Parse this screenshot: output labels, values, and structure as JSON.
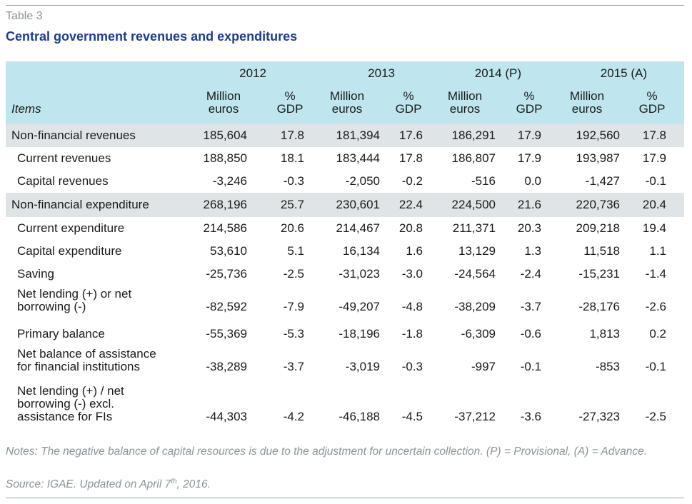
{
  "table_number": "Table 3",
  "title": "Central government revenues and expenditures",
  "header": {
    "years": [
      "2012",
      "2013",
      "2014 (P)",
      "2015 (A)"
    ],
    "unit_million_line1": "Million",
    "unit_million_line2": "euros",
    "unit_gdp_line1": "%",
    "unit_gdp_line2": "GDP",
    "items_label": "Items"
  },
  "rows": [
    {
      "label": [
        "Non-financial revenues"
      ],
      "shaded": true,
      "indent": false,
      "values": [
        "185,604",
        "17.8",
        "181,394",
        "17.6",
        "186,291",
        "17.9",
        "192,560",
        "17.8"
      ]
    },
    {
      "label": [
        "Current revenues"
      ],
      "shaded": false,
      "indent": true,
      "values": [
        "188,850",
        "18.1",
        "183,444",
        "17.8",
        "186,807",
        "17.9",
        "193,987",
        "17.9"
      ]
    },
    {
      "label": [
        "Capital revenues"
      ],
      "shaded": false,
      "indent": true,
      "values": [
        "-3,246",
        "-0.3",
        "-2,050",
        "-0.2",
        "-516",
        "0.0",
        "-1,427",
        "-0.1"
      ]
    },
    {
      "label": [
        "Non-financial expenditure"
      ],
      "shaded": true,
      "indent": false,
      "values": [
        "268,196",
        "25.7",
        "230,601",
        "22.4",
        "224,500",
        "21.6",
        "220,736",
        "20.4"
      ]
    },
    {
      "label": [
        "Current expenditure"
      ],
      "shaded": false,
      "indent": true,
      "values": [
        "214,586",
        "20.6",
        "214,467",
        "20.8",
        "211,371",
        "20.3",
        "209,218",
        "19.4"
      ]
    },
    {
      "label": [
        "Capital expenditure"
      ],
      "shaded": false,
      "indent": true,
      "values": [
        "53,610",
        "5.1",
        "16,134",
        "1.6",
        "13,129",
        "1.3",
        "11,518",
        "1.1"
      ]
    },
    {
      "label": [
        "Saving"
      ],
      "shaded": false,
      "indent": true,
      "values": [
        "-25,736",
        "-2.5",
        "-31,023",
        "-3.0",
        "-24,564",
        "-2.4",
        "-15,231",
        "-1.4"
      ]
    },
    {
      "label": [
        "Net lending (+) or net",
        "borrowing (-)"
      ],
      "shaded": false,
      "indent": true,
      "values": [
        "-82,592",
        "-7.9",
        "-49,207",
        "-4.8",
        "-38,209",
        "-3.7",
        "-28,176",
        "-2.6"
      ]
    },
    {
      "label": [
        "Primary balance"
      ],
      "shaded": false,
      "indent": true,
      "values": [
        "-55,369",
        "-5.3",
        "-18,196",
        "-1.8",
        "-6,309",
        "-0.6",
        "1,813",
        "0.2"
      ]
    },
    {
      "label": [
        "Net balance of assistance",
        "for financial institutions"
      ],
      "shaded": false,
      "indent": true,
      "values": [
        "-38,289",
        "-3.7",
        "-3,019",
        "-0.3",
        "-997",
        "-0.1",
        "-853",
        "-0.1"
      ]
    },
    {
      "label": [
        "Net lending (+) / net",
        "borrowing (-) excl.",
        "assistance for FIs"
      ],
      "shaded": false,
      "indent": true,
      "values": [
        "-44,303",
        "-4.2",
        "-46,188",
        "-4.5",
        "-37,212",
        "-3.6",
        "-27,323",
        "-2.5"
      ]
    }
  ],
  "notes": "Notes: The negative balance of capital resources is due to the adjustment for uncertain collection. (P) = Provisional, (A) = Advance.",
  "source_prefix": "Source: IGAE. Updated on April 7",
  "source_sup": "th",
  "source_suffix": ", 2016."
}
